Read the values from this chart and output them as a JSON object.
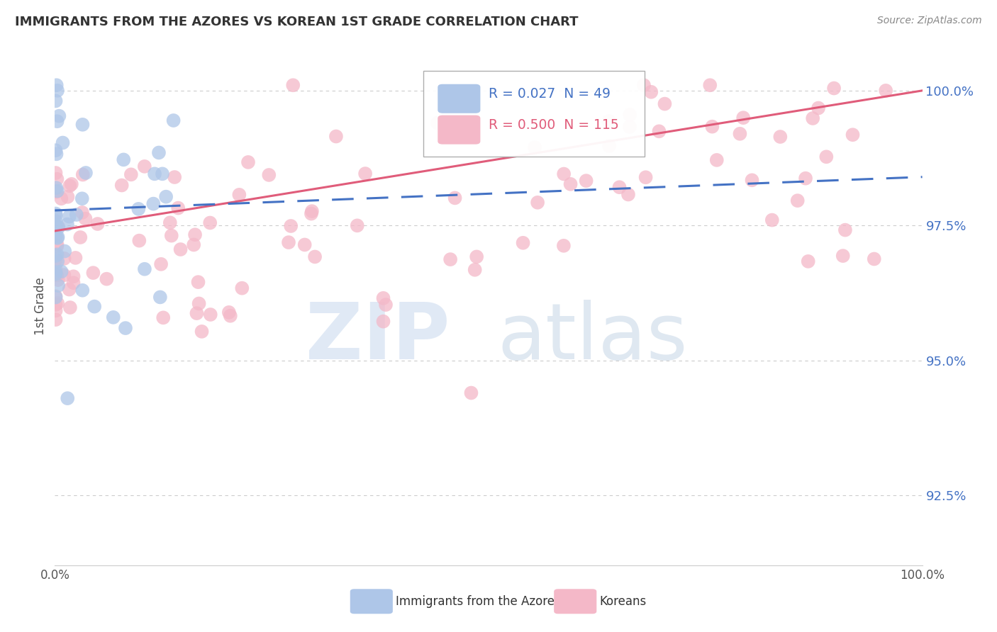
{
  "title": "IMMIGRANTS FROM THE AZORES VS KOREAN 1ST GRADE CORRELATION CHART",
  "source": "Source: ZipAtlas.com",
  "ylabel": "1st Grade",
  "ytick_values": [
    1.0,
    0.975,
    0.95,
    0.925
  ],
  "ymin": 0.912,
  "ymax": 1.008,
  "xmin": 0.0,
  "xmax": 1.0,
  "legend_azores_r": "0.027",
  "legend_azores_n": "49",
  "legend_korean_r": "0.500",
  "legend_korean_n": "115",
  "azores_color": "#aec6e8",
  "korean_color": "#f4b8c8",
  "azores_line_color": "#4472c4",
  "korean_line_color": "#e05c7a",
  "background_color": "#ffffff",
  "grid_color": "#cccccc",
  "title_color": "#333333",
  "right_axis_color": "#4472c4",
  "az_line_start_y": 0.9778,
  "az_line_end_y": 0.984,
  "kr_line_start_y": 0.974,
  "kr_line_end_y": 1.0
}
